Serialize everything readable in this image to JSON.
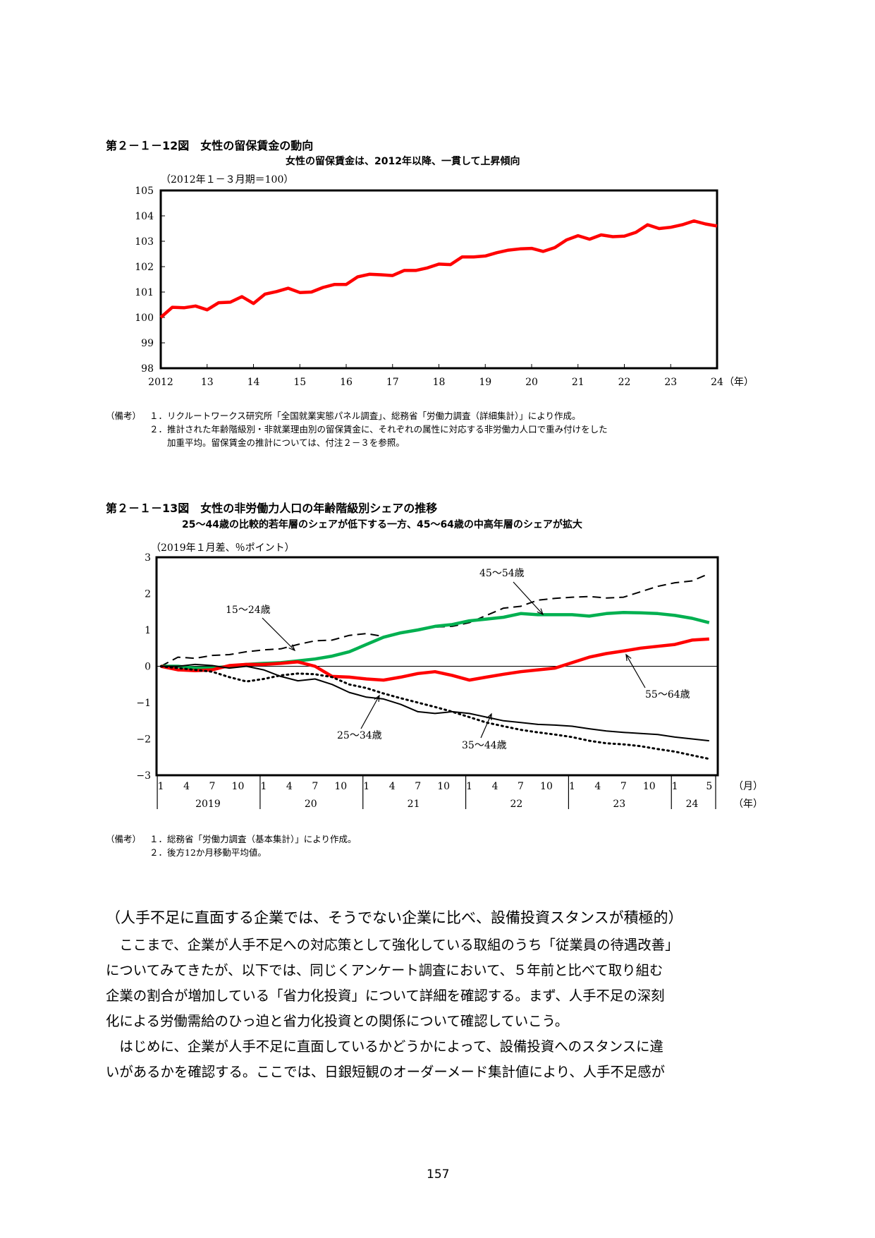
{
  "fig12": {
    "title": "第２－１－12図　女性の留保賃金の動向",
    "subtitle": "女性の留保賃金は、2012年以降、一貫して上昇傾向",
    "unit": "（2012年１－３月期＝100）",
    "notes": [
      {
        "head": "（備考）",
        "text": "１．リクルートワークス研究所「全国就業実態パネル調査」、総務省「労働力調査（詳細集計）」により作成。"
      },
      {
        "head": "",
        "text": "２．推計された年齢階級別・非就業理由別の留保賃金に、それぞれの属性に対応する非労働力人口で重み付けをした"
      },
      {
        "head": "",
        "text": "　　加重平均。留保賃金の推計については、付注２－３を参照。"
      }
    ]
  },
  "fig13": {
    "title": "第２－１－13図　女性の非労働力人口の年齢階級別シェアの推移",
    "subtitle": "25～44歳の比較的若年層のシェアが低下する一方、45～64歳の中高年層のシェアが拡大",
    "unit": "（2019年１月差、％ポイント）",
    "notes": [
      {
        "head": "（備考）",
        "text": "１．総務省「労働力調査（基本集計）」により作成。"
      },
      {
        "head": "",
        "text": "２．後方12か月移動平均値。"
      }
    ]
  },
  "section_heading": "（人手不足に直面する企業では、そうでない企業に比べ、設備投資スタンスが積極的）",
  "paragraphs": [
    "　ここまで、企業が人手不足への対応策として強化している取組のうち「従業員の待遇改善」",
    "についてみてきたが、以下では、同じくアンケート調査において、５年前と比べて取り組む",
    "企業の割合が増加している「省力化投資」について詳細を確認する。まず、人手不足の深刻",
    "化による労働需給のひっ迫と省力化投資との関係について確認していこう。",
    "　はじめに、企業が人手不足に直面しているかどうかによって、設備投資へのスタンスに違",
    "いがあるかを確認する。ここでは、日銀短観のオーダーメード集計値により、人手不足感が"
  ],
  "page_number": "157",
  "chart_data": [
    {
      "type": "line",
      "ylim": [
        98,
        105
      ],
      "yticks": [
        "98",
        "99",
        "100",
        "101",
        "102",
        "103",
        "104",
        "105"
      ],
      "xlabels": [
        "2012",
        "13",
        "14",
        "15",
        "16",
        "17",
        "18",
        "19",
        "20",
        "21",
        "22",
        "23",
        "24"
      ],
      "xunit": "（年）",
      "grid": false,
      "series": [
        {
          "color": "#ff0000",
          "style": "solid",
          "x": [
            2012.0,
            2012.25,
            2012.5,
            2012.75,
            2013.0,
            2013.25,
            2013.5,
            2013.75,
            2014.0,
            2014.25,
            2014.5,
            2014.75,
            2015.0,
            2015.25,
            2015.5,
            2015.75,
            2016.0,
            2016.25,
            2016.5,
            2016.75,
            2017.0,
            2017.25,
            2017.5,
            2017.75,
            2018.0,
            2018.25,
            2018.5,
            2018.75,
            2019.0,
            2019.25,
            2019.5,
            2019.75,
            2020.0,
            2020.25,
            2020.5,
            2020.75,
            2021.0,
            2021.25,
            2021.5,
            2021.75,
            2022.0,
            2022.25,
            2022.5,
            2022.75,
            2023.0,
            2023.25,
            2023.5,
            2023.75,
            2024.0
          ],
          "values": [
            100.0,
            100.4,
            100.38,
            100.45,
            100.3,
            100.58,
            100.6,
            100.82,
            100.55,
            100.92,
            101.02,
            101.15,
            100.98,
            101.0,
            101.18,
            101.3,
            101.3,
            101.6,
            101.7,
            101.68,
            101.65,
            101.85,
            101.85,
            101.95,
            102.1,
            102.08,
            102.38,
            102.38,
            102.42,
            102.55,
            102.65,
            102.7,
            102.72,
            102.6,
            102.75,
            103.05,
            103.22,
            103.08,
            103.25,
            103.18,
            103.2,
            103.35,
            103.65,
            103.5,
            103.55,
            103.65,
            103.8,
            103.68,
            103.6
          ]
        }
      ]
    },
    {
      "type": "line",
      "ylim": [
        -3,
        3
      ],
      "yticks": [
        "−3",
        "−2",
        "−1",
        "0",
        "1",
        "2",
        "3"
      ],
      "month_ticks": [
        {
          "label": "1",
          "m": 0
        },
        {
          "label": "4",
          "m": 3
        },
        {
          "label": "7",
          "m": 6
        },
        {
          "label": "10",
          "m": 9
        },
        {
          "label": "1",
          "m": 12
        },
        {
          "label": "4",
          "m": 15
        },
        {
          "label": "7",
          "m": 18
        },
        {
          "label": "10",
          "m": 21
        },
        {
          "label": "1",
          "m": 24
        },
        {
          "label": "4",
          "m": 27
        },
        {
          "label": "7",
          "m": 30
        },
        {
          "label": "10",
          "m": 33
        },
        {
          "label": "1",
          "m": 36
        },
        {
          "label": "4",
          "m": 39
        },
        {
          "label": "7",
          "m": 42
        },
        {
          "label": "10",
          "m": 45
        },
        {
          "label": "1",
          "m": 48
        },
        {
          "label": "4",
          "m": 51
        },
        {
          "label": "7",
          "m": 54
        },
        {
          "label": "10",
          "m": 57
        },
        {
          "label": "1",
          "m": 60
        },
        {
          "label": "5",
          "m": 64
        }
      ],
      "years": [
        {
          "label": "2019",
          "start": 0,
          "end": 12
        },
        {
          "label": "20",
          "start": 12,
          "end": 24
        },
        {
          "label": "21",
          "start": 24,
          "end": 36
        },
        {
          "label": "22",
          "start": 36,
          "end": 48
        },
        {
          "label": "23",
          "start": 48,
          "end": 60
        },
        {
          "label": "24",
          "start": 60,
          "end": 65
        }
      ],
      "month_unit": "（月）",
      "year_unit": "（年）",
      "grid": false,
      "series": [
        {
          "name": "15～24歳",
          "color": "#000000",
          "style": "dashed",
          "m": [
            0,
            2,
            4,
            6,
            8,
            10,
            12,
            14,
            16,
            18,
            20,
            22,
            24,
            26,
            28,
            30,
            32,
            34,
            36,
            38,
            40,
            42,
            44,
            46,
            48,
            50,
            52,
            54,
            56,
            58,
            60,
            62,
            64
          ],
          "values": [
            0,
            0.25,
            0.22,
            0.3,
            0.32,
            0.4,
            0.45,
            0.48,
            0.6,
            0.7,
            0.72,
            0.85,
            0.9,
            0.82,
            0.9,
            1.0,
            1.08,
            1.1,
            1.2,
            1.4,
            1.6,
            1.65,
            1.82,
            1.87,
            1.9,
            1.92,
            1.88,
            1.9,
            2.05,
            2.2,
            2.3,
            2.35,
            2.55
          ]
        },
        {
          "name": "45～54歳",
          "color": "#00b050",
          "style": "solid",
          "m": [
            0,
            2,
            4,
            6,
            8,
            10,
            12,
            14,
            16,
            18,
            20,
            22,
            24,
            26,
            28,
            30,
            32,
            34,
            36,
            38,
            40,
            42,
            44,
            46,
            48,
            50,
            52,
            54,
            56,
            58,
            60,
            62,
            64
          ],
          "values": [
            0,
            0.0,
            -0.05,
            -0.05,
            0.0,
            0.05,
            0.08,
            0.1,
            0.15,
            0.2,
            0.28,
            0.4,
            0.6,
            0.8,
            0.92,
            1.0,
            1.1,
            1.15,
            1.25,
            1.3,
            1.35,
            1.45,
            1.42,
            1.42,
            1.42,
            1.38,
            1.45,
            1.48,
            1.47,
            1.45,
            1.4,
            1.32,
            1.2
          ]
        },
        {
          "name": "55～64歳",
          "color": "#ff0000",
          "style": "solid",
          "m": [
            0,
            2,
            4,
            6,
            8,
            10,
            12,
            14,
            16,
            18,
            20,
            22,
            24,
            26,
            28,
            30,
            32,
            34,
            36,
            38,
            40,
            42,
            44,
            46,
            48,
            50,
            52,
            54,
            56,
            58,
            60,
            62,
            64
          ],
          "values": [
            0,
            -0.1,
            -0.12,
            -0.1,
            0.02,
            0.05,
            0.05,
            0.08,
            0.12,
            0.0,
            -0.28,
            -0.3,
            -0.35,
            -0.38,
            -0.3,
            -0.2,
            -0.15,
            -0.25,
            -0.38,
            -0.3,
            -0.22,
            -0.15,
            -0.1,
            -0.05,
            0.1,
            0.25,
            0.35,
            0.42,
            0.5,
            0.55,
            0.6,
            0.72,
            0.75
          ]
        },
        {
          "name": "25～34歳",
          "color": "#000000",
          "style": "solid",
          "m": [
            0,
            2,
            4,
            6,
            8,
            10,
            12,
            14,
            16,
            18,
            20,
            22,
            24,
            26,
            28,
            30,
            32,
            34,
            36,
            38,
            40,
            42,
            44,
            46,
            48,
            50,
            52,
            54,
            56,
            58,
            60,
            62,
            64
          ],
          "values": [
            0,
            0.0,
            0.05,
            0.02,
            -0.05,
            0.0,
            -0.1,
            -0.28,
            -0.4,
            -0.35,
            -0.5,
            -0.72,
            -0.85,
            -0.9,
            -1.05,
            -1.25,
            -1.3,
            -1.25,
            -1.3,
            -1.4,
            -1.5,
            -1.55,
            -1.6,
            -1.62,
            -1.65,
            -1.72,
            -1.78,
            -1.82,
            -1.85,
            -1.88,
            -1.95,
            -2.0,
            -2.05
          ]
        },
        {
          "name": "35～44歳",
          "color": "#000000",
          "style": "dotted",
          "m": [
            0,
            2,
            4,
            6,
            8,
            10,
            12,
            14,
            16,
            18,
            20,
            22,
            24,
            26,
            28,
            30,
            32,
            34,
            36,
            38,
            40,
            42,
            44,
            46,
            48,
            50,
            52,
            54,
            56,
            58,
            60,
            62,
            64
          ],
          "values": [
            0,
            -0.05,
            -0.1,
            -0.15,
            -0.3,
            -0.42,
            -0.35,
            -0.25,
            -0.2,
            -0.22,
            -0.3,
            -0.5,
            -0.6,
            -0.75,
            -0.88,
            -1.0,
            -1.12,
            -1.25,
            -1.4,
            -1.55,
            -1.65,
            -1.75,
            -1.82,
            -1.88,
            -1.95,
            -2.05,
            -2.12,
            -2.15,
            -2.2,
            -2.28,
            -2.35,
            -2.45,
            -2.55
          ]
        }
      ],
      "annotations": [
        {
          "text": "15～24歳"
        },
        {
          "text": "45～54歳"
        },
        {
          "text": "55～64歳"
        },
        {
          "text": "25～34歳"
        },
        {
          "text": "35～44歳"
        }
      ]
    }
  ]
}
